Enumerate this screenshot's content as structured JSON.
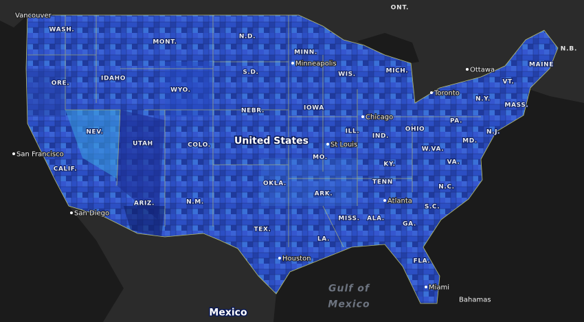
{
  "countries": [
    "ONT.",
    "N.B.",
    "United States",
    "Mexico"
  ],
  "water": [
    "Gulf of",
    "Mexico"
  ],
  "states": [
    "WASH.",
    "MONT.",
    "N.D.",
    "MINN.",
    "WIS.",
    "MICH.",
    "MAINE",
    "VT.",
    "N.Y.",
    "MASS.",
    "ORE.",
    "IDAHO",
    "WYO.",
    "S.D.",
    "IOWA",
    "NEBR.",
    "NEV.",
    "UTAH",
    "COLO.",
    "ILL.",
    "IND.",
    "OHIO",
    "PA.",
    "N.J.",
    "MD.",
    "W.VA.",
    "VA.",
    "KY.",
    "MO.",
    "CALIF.",
    "OKLA.",
    "TENN",
    "N.C.",
    "ARK.",
    "ARIZ.",
    "N.M.",
    "S.C.",
    "MISS.",
    "ALA.",
    "GA.",
    "TEX.",
    "LA.",
    "FLA."
  ],
  "cities": [
    "Vancouver",
    "Minneapolis",
    "Ottawa",
    "Toronto",
    "Chicago",
    "St Louis",
    "San Francisco",
    "San Diego",
    "Atlanta",
    "Houston",
    "Miami",
    "Bahamas"
  ]
}
